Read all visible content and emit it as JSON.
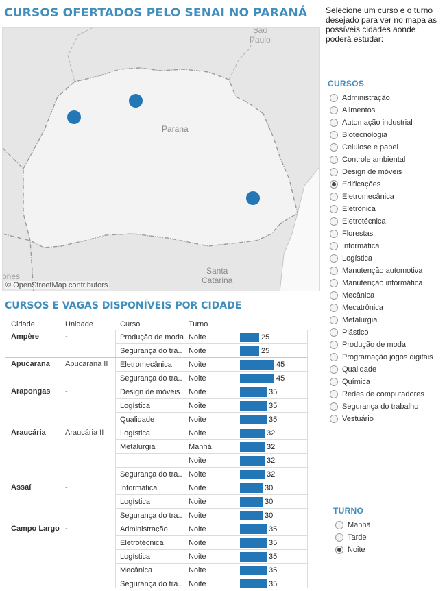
{
  "header": {
    "title": "CURSOS OFERTADOS PELO SENAI NO PARANÁ",
    "instructions": "Selecione um curso e o turno desejado para ver no mapa as possíveis cidades aonde poderá estudar:"
  },
  "map": {
    "labels": {
      "sao_paulo_1": "São",
      "sao_paulo_2": "Paulo",
      "parana": "Parana",
      "santa_catarina_1": "Santa",
      "santa_catarina_2": "Catarina",
      "edge": "ones"
    },
    "credit": "© OpenStreetMap contributors",
    "dot_color": "#2377b6"
  },
  "cursos": {
    "title": "CURSOS",
    "selected": "Edificações",
    "options": [
      "Administração",
      "Alimentos",
      "Automação industrial",
      "Biotecnologia",
      "Celulose e papel",
      "Controle ambiental",
      "Design de móveis",
      "Edificações",
      "Eletromecânica",
      "Eletrônica",
      "Eletrotécnica",
      "Florestas",
      "Informática",
      "Logística",
      "Manutenção automotiva",
      "Manutenção informática",
      "Mecânica",
      "Mecatrônica",
      "Metalurgia",
      "Plástico",
      "Produção de moda",
      "Programação jogos digitais",
      "Qualidade",
      "Química",
      "Redes de computadores",
      "Segurança do trabalho",
      "Vestuário"
    ]
  },
  "turno": {
    "title": "TURNO",
    "selected": "Noite",
    "options": [
      "Manhã",
      "Tarde",
      "Noite"
    ]
  },
  "table": {
    "title": "CURSOS E VAGAS DISPONÍVEIS POR CIDADE",
    "headers": {
      "cidade": "Cidade",
      "unidade": "Unidade",
      "curso": "Curso",
      "turno": "Turno"
    },
    "bar_color": "#2377b6",
    "max_value": 45,
    "rows": [
      {
        "cidade": "Ampère",
        "unidade": "-",
        "curso": "Produção de moda",
        "turno": "Noite",
        "vagas": 25
      },
      {
        "cidade": "",
        "unidade": "",
        "curso": "Segurança do tra..",
        "turno": "Noite",
        "vagas": 25,
        "end": true
      },
      {
        "cidade": "Apucarana",
        "unidade": "Apucarana II",
        "curso": "Eletromecânica",
        "turno": "Noite",
        "vagas": 45
      },
      {
        "cidade": "",
        "unidade": "",
        "curso": "Segurança do tra..",
        "turno": "Noite",
        "vagas": 45,
        "end": true
      },
      {
        "cidade": "Arapongas",
        "unidade": "-",
        "curso": "Design de móveis",
        "turno": "Noite",
        "vagas": 35
      },
      {
        "cidade": "",
        "unidade": "",
        "curso": "Logística",
        "turno": "Noite",
        "vagas": 35
      },
      {
        "cidade": "",
        "unidade": "",
        "curso": "Qualidade",
        "turno": "Noite",
        "vagas": 35,
        "end": true
      },
      {
        "cidade": "Araucária",
        "unidade": "Araucária II",
        "curso": "Logística",
        "turno": "Noite",
        "vagas": 32
      },
      {
        "cidade": "",
        "unidade": "",
        "curso": "Metalurgia",
        "turno": "Manhã",
        "vagas": 32
      },
      {
        "cidade": "",
        "unidade": "",
        "curso": "",
        "turno": "Noite",
        "vagas": 32
      },
      {
        "cidade": "",
        "unidade": "",
        "curso": "Segurança do tra..",
        "turno": "Noite",
        "vagas": 32,
        "end": true
      },
      {
        "cidade": "Assaí",
        "unidade": "-",
        "curso": "Informática",
        "turno": "Noite",
        "vagas": 30
      },
      {
        "cidade": "",
        "unidade": "",
        "curso": "Logística",
        "turno": "Noite",
        "vagas": 30
      },
      {
        "cidade": "",
        "unidade": "",
        "curso": "Segurança do tra..",
        "turno": "Noite",
        "vagas": 30,
        "end": true
      },
      {
        "cidade": "Campo Largo",
        "unidade": "-",
        "curso": "Administração",
        "turno": "Noite",
        "vagas": 35
      },
      {
        "cidade": "",
        "unidade": "",
        "curso": "Eletrotécnica",
        "turno": "Noite",
        "vagas": 35
      },
      {
        "cidade": "",
        "unidade": "",
        "curso": "Logística",
        "turno": "Noite",
        "vagas": 35
      },
      {
        "cidade": "",
        "unidade": "",
        "curso": "Mecânica",
        "turno": "Noite",
        "vagas": 35
      },
      {
        "cidade": "",
        "unidade": "",
        "curso": "Segurança do tra..",
        "turno": "Noite",
        "vagas": 35
      }
    ]
  }
}
